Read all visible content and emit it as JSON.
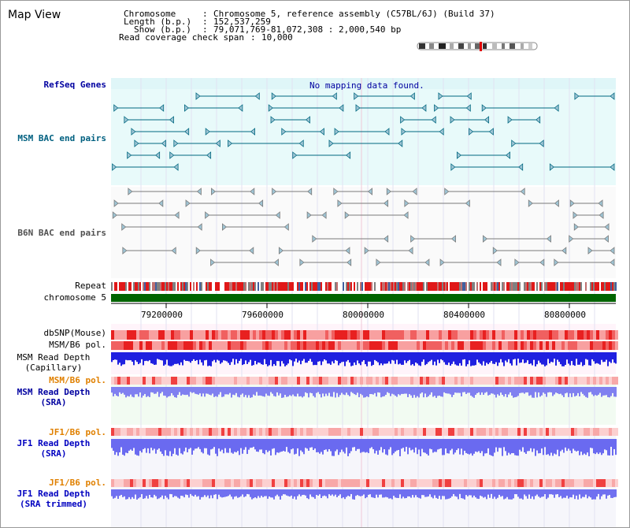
{
  "page": {
    "title": "Map View"
  },
  "info": {
    "chromosome_key": "Chromosome",
    "chromosome_val": "Chromosome 5, reference assembly (C57BL/6J) (Build 37)",
    "length_key": "Length (b.p.)",
    "length_val": "152,537,259",
    "show_key": "Show (b.p.)",
    "show_val": "79,071,769-81,072,308 : 2,000,540 bp",
    "coverage_key": "Read coverage check span",
    "coverage_val": "10,000"
  },
  "tracks": {
    "refseq": {
      "label": "RefSeq Genes",
      "message": "No mapping data found."
    },
    "msm_bac": {
      "label": "MSM BAC end pairs"
    },
    "b6n_bac": {
      "label": "B6N BAC end pairs"
    },
    "repeat": {
      "label": "Repeat"
    },
    "chromosome": {
      "label": "chromosome 5"
    },
    "dbsnp": {
      "label": "dbSNP(Mouse)"
    },
    "msm_b6_pol": {
      "label": "MSM/B6 pol."
    },
    "msm_depth_cap": {
      "line1": "MSM Read Depth",
      "line2": "(Capillary)"
    },
    "msm_b6_pol_2": {
      "label": "MSM/B6 pol."
    },
    "msm_depth_sra": {
      "line1": "MSM Read Depth",
      "line2": "(SRA)"
    },
    "jf1_b6_pol": {
      "label": "JF1/B6 pol."
    },
    "jf1_depth_sra": {
      "line1": "JF1 Read Depth",
      "line2": "(SRA)"
    },
    "jf1_b6_pol_2": {
      "label": "JF1/B6 pol."
    },
    "jf1_depth_trim": {
      "line1": "JF1 Read Depth",
      "line2": "(SRA trimmed)"
    }
  },
  "axis": {
    "ticks": [
      "79200000",
      "79600000",
      "80000000",
      "80400000",
      "80800000"
    ]
  },
  "colors": {
    "refseq_label": "#0000a0",
    "msm_label": "#006080",
    "b6n_label": "#505050",
    "pol_orange": "#e08000",
    "depth_blue": "#0000c0",
    "msm_sra_label": "#0000a0",
    "band_bg": "#e8fafa",
    "chrom_green": "#006400"
  }
}
